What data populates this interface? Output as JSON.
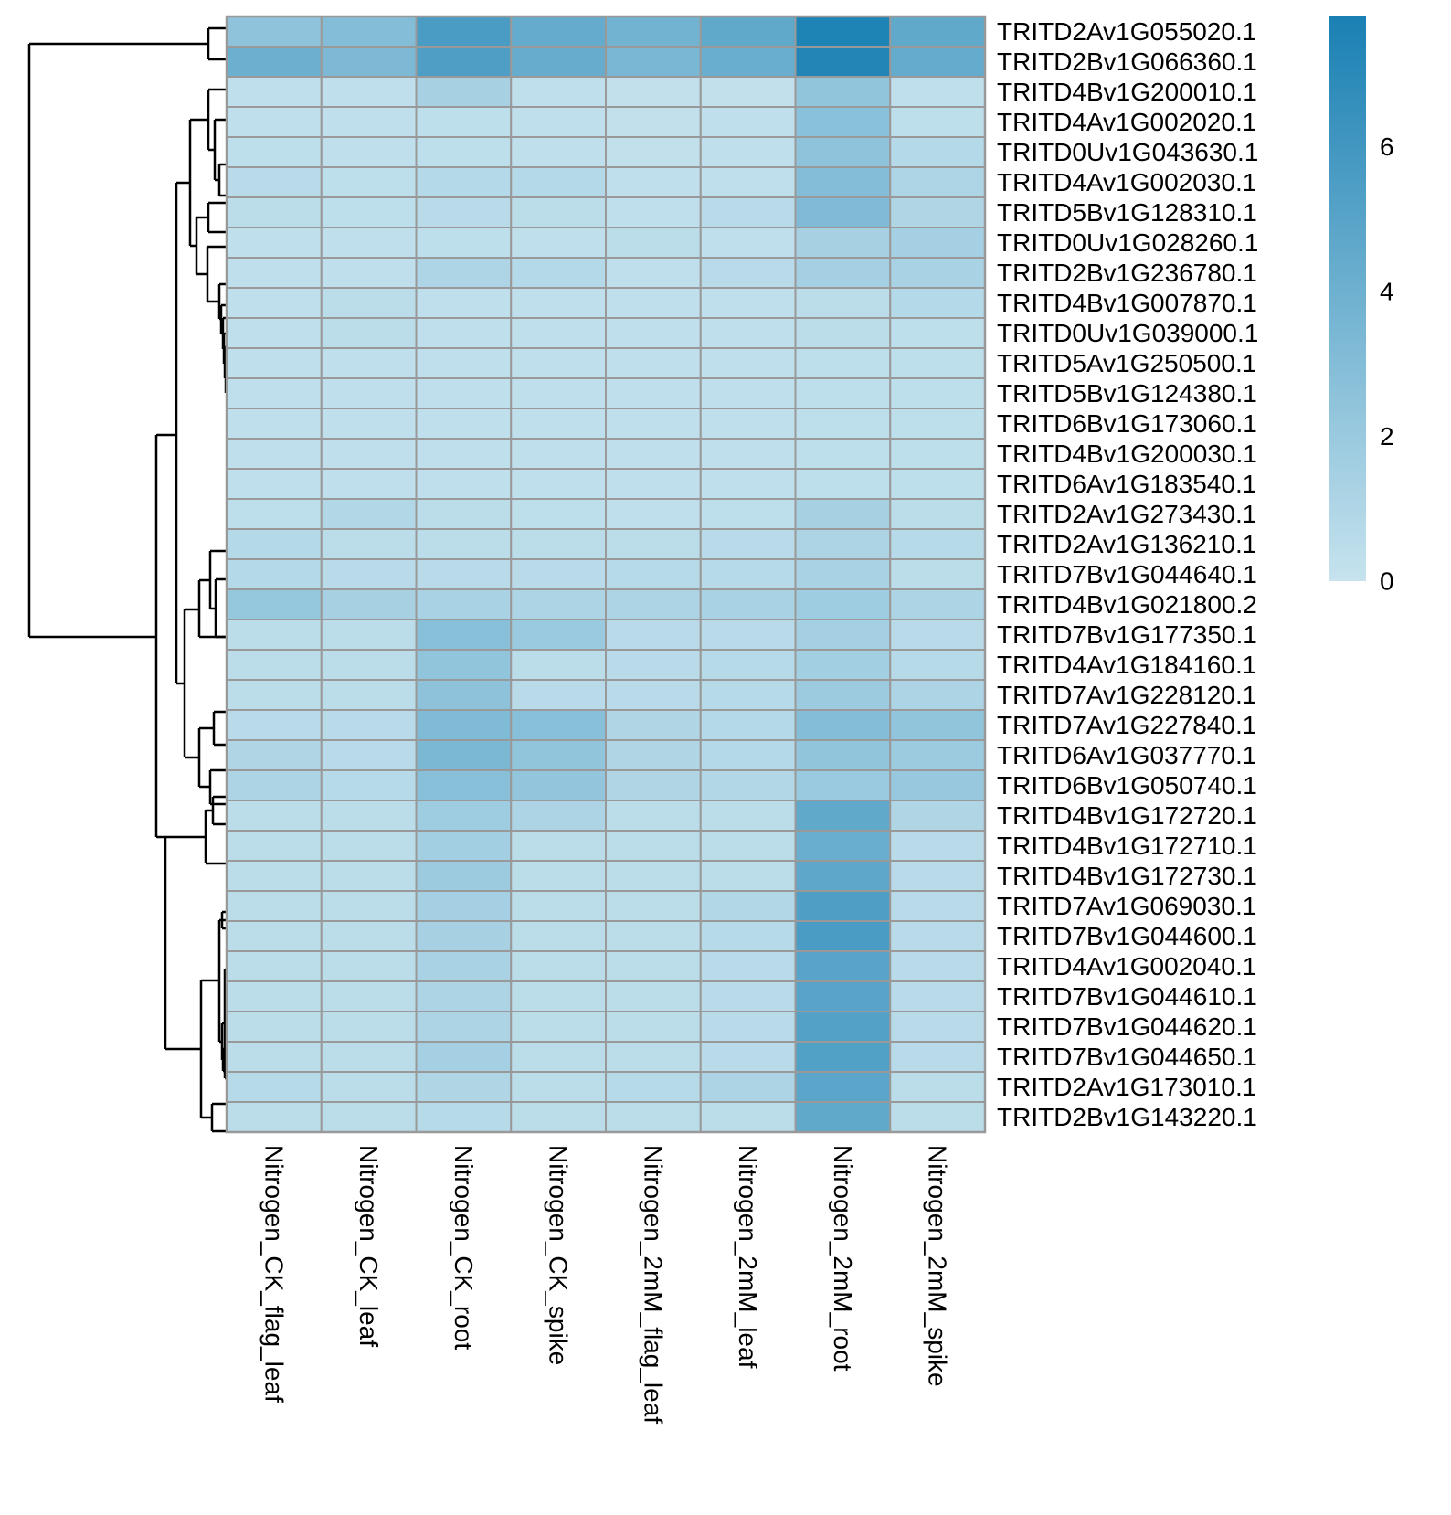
{
  "chart_data": {
    "type": "heatmap",
    "title": "",
    "xlabel": "",
    "ylabel": "",
    "columns": [
      "Nitrogen_CK_flag_leaf",
      "Nitrogen_CK_leaf",
      "Nitrogen_CK_root",
      "Nitrogen_CK_spike",
      "Nitrogen_2mM_flag_leaf",
      "Nitrogen_2mM_leaf",
      "Nitrogen_2mM_root",
      "Nitrogen_2mM_spike"
    ],
    "rows": [
      "TRITD2Av1G055020.1",
      "TRITD2Bv1G066360.1",
      "TRITD4Bv1G200010.1",
      "TRITD4Av1G002020.1",
      "TRITD0Uv1G043630.1",
      "TRITD4Av1G002030.1",
      "TRITD5Bv1G128310.1",
      "TRITD0Uv1G028260.1",
      "TRITD2Bv1G236780.1",
      "TRITD4Bv1G007870.1",
      "TRITD0Uv1G039000.1",
      "TRITD5Av1G250500.1",
      "TRITD5Bv1G124380.1",
      "TRITD6Bv1G173060.1",
      "TRITD4Bv1G200030.1",
      "TRITD6Av1G183540.1",
      "TRITD2Av1G273430.1",
      "TRITD2Av1G136210.1",
      "TRITD7Bv1G044640.1",
      "TRITD4Bv1G021800.2",
      "TRITD7Bv1G177350.1",
      "TRITD4Av1G184160.1",
      "TRITD7Av1G228120.1",
      "TRITD7Av1G227840.1",
      "TRITD6Av1G037770.1",
      "TRITD6Bv1G050740.1",
      "TRITD4Bv1G172720.1",
      "TRITD4Bv1G172710.1",
      "TRITD4Bv1G172730.1",
      "TRITD7Av1G069030.1",
      "TRITD7Bv1G044600.1",
      "TRITD4Av1G002040.1",
      "TRITD7Bv1G044610.1",
      "TRITD7Bv1G044620.1",
      "TRITD7Bv1G044650.1",
      "TRITD2Av1G173010.1",
      "TRITD2Bv1G143220.1"
    ],
    "values": [
      [
        2.5,
        3.0,
        5.6,
        4.4,
        3.8,
        4.6,
        7.6,
        4.6
      ],
      [
        4.1,
        3.3,
        5.4,
        4.3,
        3.5,
        4.2,
        7.4,
        4.4
      ],
      [
        0.3,
        0.3,
        1.4,
        0.3,
        0.2,
        0.2,
        2.4,
        0.3
      ],
      [
        0.3,
        0.3,
        0.4,
        0.3,
        0.2,
        0.3,
        2.7,
        0.4
      ],
      [
        0.4,
        0.3,
        0.4,
        0.3,
        0.2,
        0.3,
        2.5,
        0.8
      ],
      [
        0.6,
        0.4,
        0.8,
        0.8,
        0.3,
        0.3,
        3.0,
        1.1
      ],
      [
        0.5,
        0.4,
        0.6,
        0.5,
        0.3,
        0.6,
        3.2,
        1.0
      ],
      [
        0.3,
        0.3,
        0.4,
        0.3,
        0.5,
        0.3,
        1.4,
        1.5
      ],
      [
        0.3,
        0.3,
        1.1,
        0.8,
        0.3,
        0.6,
        1.5,
        1.3
      ],
      [
        0.3,
        0.5,
        0.3,
        0.3,
        0.3,
        0.3,
        0.5,
        0.8
      ],
      [
        0.3,
        0.5,
        0.3,
        0.3,
        0.3,
        0.3,
        0.5,
        0.4
      ],
      [
        0.3,
        0.3,
        0.3,
        0.3,
        0.3,
        0.3,
        0.4,
        0.4
      ],
      [
        0.3,
        0.3,
        0.3,
        0.3,
        0.3,
        0.3,
        0.4,
        0.4
      ],
      [
        0.3,
        0.3,
        0.3,
        0.3,
        0.3,
        0.3,
        0.4,
        0.4
      ],
      [
        0.3,
        0.3,
        0.3,
        0.3,
        0.3,
        0.3,
        0.4,
        0.4
      ],
      [
        0.3,
        0.3,
        0.3,
        0.3,
        0.3,
        0.3,
        0.4,
        0.4
      ],
      [
        0.4,
        0.9,
        0.5,
        0.4,
        0.3,
        0.4,
        1.4,
        0.5
      ],
      [
        0.8,
        0.5,
        0.5,
        0.5,
        0.5,
        0.6,
        1.2,
        0.7
      ],
      [
        0.8,
        0.6,
        0.6,
        0.6,
        0.7,
        0.7,
        1.3,
        0.5
      ],
      [
        2.2,
        1.4,
        1.3,
        1.2,
        1.2,
        1.3,
        1.8,
        1.2
      ],
      [
        0.5,
        0.5,
        2.8,
        2.0,
        0.6,
        0.6,
        1.5,
        0.6
      ],
      [
        0.5,
        0.5,
        2.4,
        0.5,
        0.6,
        0.7,
        1.6,
        0.7
      ],
      [
        0.5,
        0.5,
        2.6,
        0.6,
        0.6,
        0.7,
        1.9,
        1.2
      ],
      [
        0.6,
        0.6,
        3.2,
        2.8,
        1.0,
        0.8,
        3.0,
        2.4
      ],
      [
        1.0,
        0.6,
        3.4,
        2.4,
        1.0,
        0.8,
        2.4,
        1.9
      ],
      [
        1.2,
        0.7,
        2.8,
        2.3,
        1.0,
        0.9,
        2.0,
        2.1
      ],
      [
        0.5,
        0.5,
        1.8,
        1.2,
        0.5,
        0.5,
        4.6,
        1.0
      ],
      [
        0.5,
        0.5,
        1.6,
        0.5,
        0.5,
        0.5,
        4.2,
        0.6
      ],
      [
        0.5,
        0.5,
        1.9,
        0.5,
        0.5,
        0.5,
        4.7,
        0.6
      ],
      [
        0.5,
        0.5,
        1.5,
        0.5,
        0.5,
        0.9,
        5.4,
        0.6
      ],
      [
        0.5,
        0.5,
        1.4,
        0.5,
        0.5,
        0.7,
        5.6,
        0.6
      ],
      [
        0.5,
        0.5,
        1.3,
        0.5,
        0.5,
        0.6,
        5.0,
        0.6
      ],
      [
        0.5,
        0.5,
        1.2,
        0.5,
        0.5,
        0.6,
        5.0,
        0.6
      ],
      [
        0.5,
        0.5,
        1.2,
        0.5,
        0.5,
        0.6,
        5.2,
        0.6
      ],
      [
        0.5,
        0.5,
        1.5,
        0.5,
        0.5,
        0.6,
        5.3,
        0.6
      ],
      [
        0.7,
        0.5,
        1.0,
        0.5,
        0.7,
        1.2,
        4.9,
        0.5
      ],
      [
        0.5,
        0.5,
        0.7,
        0.5,
        0.5,
        0.5,
        4.6,
        0.5
      ]
    ],
    "color_scale": {
      "min": 0,
      "max": 7.8,
      "low_color": "#c6e3ee",
      "high_color": "#1a80b3",
      "legend_ticks": [
        "0",
        "2",
        "4",
        "6"
      ]
    },
    "cell_border_color": "#999999",
    "row_dendrogram": true,
    "column_dendrogram": false,
    "legend_position": "top-right"
  }
}
